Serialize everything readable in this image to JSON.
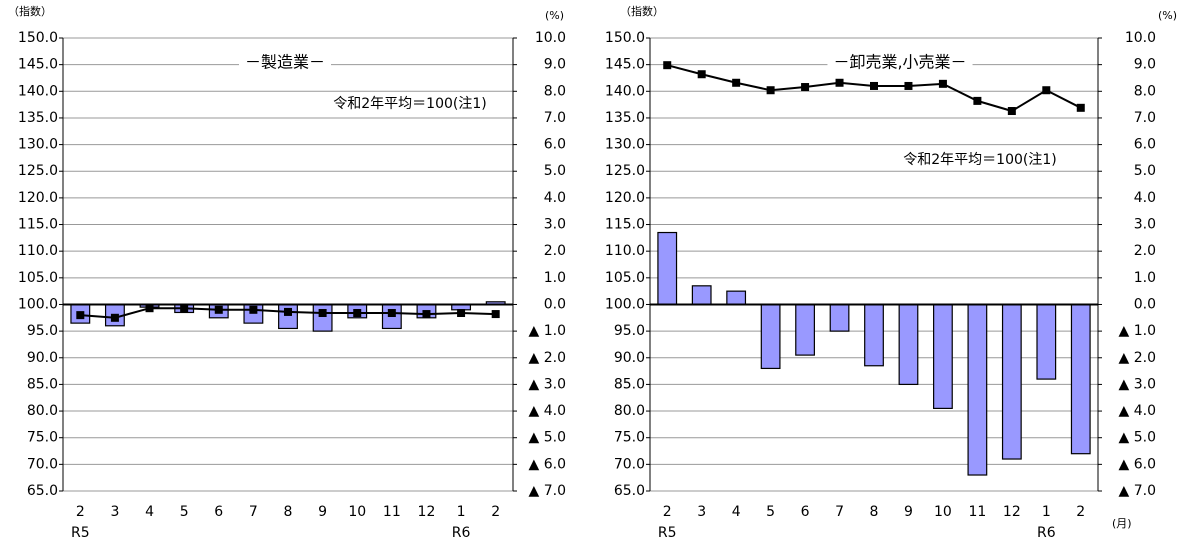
{
  "chart_data": [
    {
      "type": "combo",
      "title": "－製造業－",
      "note": "令和2年平均＝100(注1)",
      "ylabel": "（指数）",
      "y2label": "(%)",
      "categories": [
        "2",
        "3",
        "4",
        "5",
        "6",
        "7",
        "8",
        "9",
        "10",
        "11",
        "12",
        "1",
        "2"
      ],
      "era_labels": [
        "R5",
        null,
        null,
        null,
        null,
        null,
        null,
        null,
        null,
        null,
        null,
        "R6",
        null
      ],
      "series": [
        {
          "type": "bar",
          "axis": "y2",
          "color": "#9999ff",
          "values": [
            -0.7,
            -0.8,
            -0.1,
            -0.3,
            -0.5,
            -0.7,
            -0.9,
            -1.0,
            -0.5,
            -0.9,
            -0.5,
            -0.2,
            0.1
          ]
        },
        {
          "type": "line",
          "color": "#000000",
          "values": [
            98.0,
            97.5,
            99.3,
            99.3,
            99.0,
            99.0,
            98.6,
            98.4,
            98.4,
            98.4,
            98.2,
            98.4,
            98.2
          ]
        }
      ],
      "ylim": [
        65,
        150
      ],
      "yticks": [
        {
          "value": 65,
          "label": "65.0"
        },
        {
          "value": 70,
          "label": "70.0"
        },
        {
          "value": 75,
          "label": "75.0"
        },
        {
          "value": 80,
          "label": "80.0"
        },
        {
          "value": 85,
          "label": "85.0"
        },
        {
          "value": 90,
          "label": "90.0"
        },
        {
          "value": 95,
          "label": "95.0"
        },
        {
          "value": 100,
          "label": "100.0"
        },
        {
          "value": 105,
          "label": "105.0"
        },
        {
          "value": 110,
          "label": "110.0"
        },
        {
          "value": 115,
          "label": "115.0"
        },
        {
          "value": 120,
          "label": "120.0"
        },
        {
          "value": 125,
          "label": "125.0"
        },
        {
          "value": 130,
          "label": "130.0"
        },
        {
          "value": 135,
          "label": "135.0"
        },
        {
          "value": 140,
          "label": "140.0"
        },
        {
          "value": 145,
          "label": "145.0"
        },
        {
          "value": 150,
          "label": "150.0"
        }
      ],
      "y2lim": [
        -7,
        10
      ],
      "y2ticks": [
        {
          "value": -7,
          "label": "▲ 7.0"
        },
        {
          "value": -6,
          "label": "▲ 6.0"
        },
        {
          "value": -5,
          "label": "▲ 5.0"
        },
        {
          "value": -4,
          "label": "▲ 4.0"
        },
        {
          "value": -3,
          "label": "▲ 3.0"
        },
        {
          "value": -2,
          "label": "▲ 2.0"
        },
        {
          "value": -1,
          "label": "▲ 1.0"
        },
        {
          "value": 0,
          "label": "0.0"
        },
        {
          "value": 1,
          "label": "1.0"
        },
        {
          "value": 2,
          "label": "2.0"
        },
        {
          "value": 3,
          "label": "3.0"
        },
        {
          "value": 4,
          "label": "4.0"
        },
        {
          "value": 5,
          "label": "5.0"
        },
        {
          "value": 6,
          "label": "6.0"
        },
        {
          "value": 7,
          "label": "7.0"
        },
        {
          "value": 8,
          "label": "8.0"
        },
        {
          "value": 9,
          "label": "9.0"
        },
        {
          "value": 10,
          "label": "10.0"
        }
      ],
      "grid": true
    },
    {
      "type": "combo",
      "title": "－卸売業,小売業－",
      "note": "令和2年平均＝100(注1)",
      "ylabel": "（指数）",
      "y2label": "(%)",
      "xlabel": "(月)",
      "categories": [
        "2",
        "3",
        "4",
        "5",
        "6",
        "7",
        "8",
        "9",
        "10",
        "11",
        "12",
        "1",
        "2"
      ],
      "era_labels": [
        "R5",
        null,
        null,
        null,
        null,
        null,
        null,
        null,
        null,
        null,
        null,
        "R6",
        null
      ],
      "series": [
        {
          "type": "bar",
          "axis": "y2",
          "color": "#9999ff",
          "values": [
            2.7,
            0.7,
            0.5,
            -2.4,
            -1.9,
            -1.0,
            -2.3,
            -3.0,
            -3.9,
            -6.4,
            -5.8,
            -2.8,
            -5.6
          ]
        },
        {
          "type": "line",
          "color": "#000000",
          "values": [
            144.9,
            143.2,
            141.6,
            140.2,
            140.8,
            141.6,
            141.0,
            141.0,
            141.4,
            138.2,
            136.3,
            140.2,
            136.9
          ]
        }
      ],
      "ylim": [
        65,
        150
      ],
      "yticks": [
        {
          "value": 65,
          "label": "65.0"
        },
        {
          "value": 70,
          "label": "70.0"
        },
        {
          "value": 75,
          "label": "75.0"
        },
        {
          "value": 80,
          "label": "80.0"
        },
        {
          "value": 85,
          "label": "85.0"
        },
        {
          "value": 90,
          "label": "90.0"
        },
        {
          "value": 95,
          "label": "95.0"
        },
        {
          "value": 100,
          "label": "100.0"
        },
        {
          "value": 105,
          "label": "105.0"
        },
        {
          "value": 110,
          "label": "110.0"
        },
        {
          "value": 115,
          "label": "115.0"
        },
        {
          "value": 120,
          "label": "120.0"
        },
        {
          "value": 125,
          "label": "125.0"
        },
        {
          "value": 130,
          "label": "130.0"
        },
        {
          "value": 135,
          "label": "135.0"
        },
        {
          "value": 140,
          "label": "140.0"
        },
        {
          "value": 145,
          "label": "145.0"
        },
        {
          "value": 150,
          "label": "150.0"
        }
      ],
      "y2lim": [
        -7,
        10
      ],
      "y2ticks": [
        {
          "value": -7,
          "label": "▲ 7.0"
        },
        {
          "value": -6,
          "label": "▲ 6.0"
        },
        {
          "value": -5,
          "label": "▲ 5.0"
        },
        {
          "value": -4,
          "label": "▲ 4.0"
        },
        {
          "value": -3,
          "label": "▲ 3.0"
        },
        {
          "value": -2,
          "label": "▲ 2.0"
        },
        {
          "value": -1,
          "label": "▲ 1.0"
        },
        {
          "value": 0,
          "label": "0.0"
        },
        {
          "value": 1,
          "label": "1.0"
        },
        {
          "value": 2,
          "label": "2.0"
        },
        {
          "value": 3,
          "label": "3.0"
        },
        {
          "value": 4,
          "label": "4.0"
        },
        {
          "value": 5,
          "label": "5.0"
        },
        {
          "value": 6,
          "label": "6.0"
        },
        {
          "value": 7,
          "label": "7.0"
        },
        {
          "value": 8,
          "label": "8.0"
        },
        {
          "value": 9,
          "label": "9.0"
        },
        {
          "value": 10,
          "label": "10.0"
        }
      ],
      "grid": true
    }
  ]
}
